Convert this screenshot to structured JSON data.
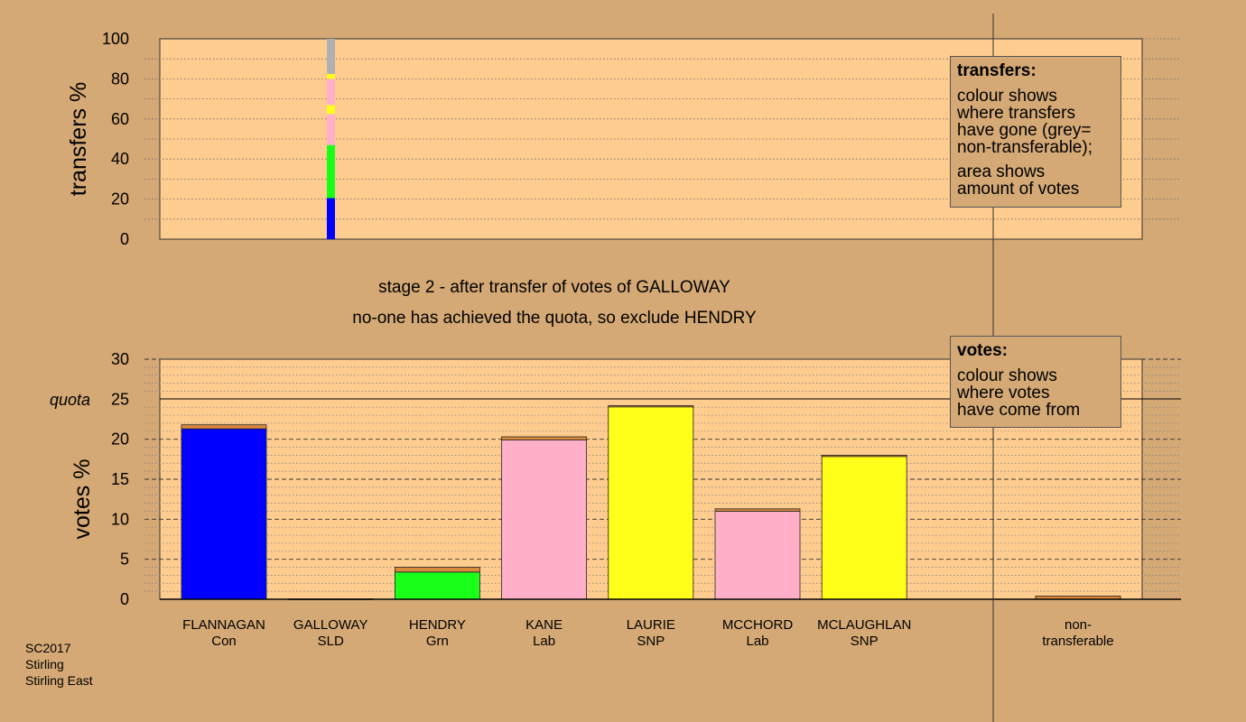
{
  "stage_text": "stage 2 - after transfer of votes of GALLOWAY",
  "decision_text": "no-one has achieved the quota, so exclude HENDRY",
  "footer": [
    "SC2017",
    "Stirling",
    "Stirling East"
  ],
  "legend_transfers": {
    "title": "transfers:",
    "lines1": [
      "colour shows",
      "where transfers",
      "have gone (grey=",
      "non-transferable);"
    ],
    "lines2": [
      "area shows",
      "amount of votes"
    ]
  },
  "legend_votes": {
    "title": "votes:",
    "lines": [
      "colour shows",
      "where votes",
      "have come from"
    ]
  },
  "colors": {
    "background": "#d4a975",
    "plot": "#ffcc8f",
    "Con": "#0000ff",
    "Grn": "#1aff1a",
    "Lab": "#ffb0c8",
    "SNP": "#ffff1a",
    "nontransferable": "#b0b0b0",
    "transfer_increment": "#d98a3c"
  },
  "chart_data": [
    {
      "type": "bar",
      "stacked": true,
      "title": "",
      "ylabel": "transfers %",
      "ylim": [
        0,
        100
      ],
      "yticks": [
        0,
        20,
        40,
        60,
        80,
        100
      ],
      "grid": "dotted",
      "series": [
        {
          "name": "FLANNAGAN",
          "party": "Con",
          "values": [
            20.5
          ]
        },
        {
          "name": "HENDRY",
          "party": "Grn",
          "values": [
            26.5
          ]
        },
        {
          "name": "KANE",
          "party": "Lab",
          "values": [
            15.5
          ]
        },
        {
          "name": "LAURIE",
          "party": "SNP",
          "values": [
            4.5
          ]
        },
        {
          "name": "MCCHORD",
          "party": "Lab",
          "values": [
            13.0
          ]
        },
        {
          "name": "MCLAUGHLAN",
          "party": "SNP",
          "values": [
            2.5
          ]
        },
        {
          "name": "non-transferable",
          "party": "",
          "values": [
            17.5
          ]
        }
      ]
    },
    {
      "type": "bar",
      "stacked": true,
      "ylabel": "votes %",
      "ylim": [
        0,
        30
      ],
      "yticks": [
        0,
        5,
        10,
        15,
        20,
        25,
        30
      ],
      "quota": 25,
      "quota_label": "quota",
      "grid": "dashed",
      "categories": [
        {
          "name": "FLANNAGAN",
          "party": "Con",
          "first_prefs": 21.3,
          "transfer": 0.5
        },
        {
          "name": "GALLOWAY",
          "party": "SLD",
          "first_prefs": 0.0,
          "transfer": 0.0
        },
        {
          "name": "HENDRY",
          "party": "Grn",
          "first_prefs": 3.4,
          "transfer": 0.6
        },
        {
          "name": "KANE",
          "party": "Lab",
          "first_prefs": 19.9,
          "transfer": 0.4
        },
        {
          "name": "LAURIE",
          "party": "SNP",
          "first_prefs": 24.1,
          "transfer": 0.1
        },
        {
          "name": "MCCHORD",
          "party": "Lab",
          "first_prefs": 11.0,
          "transfer": 0.3
        },
        {
          "name": "MCLAUGHLAN",
          "party": "SNP",
          "first_prefs": 17.9,
          "transfer": 0.1
        }
      ],
      "non_transferable": {
        "label_lines": [
          "non-",
          "transferable"
        ],
        "value": 0.4
      }
    }
  ]
}
